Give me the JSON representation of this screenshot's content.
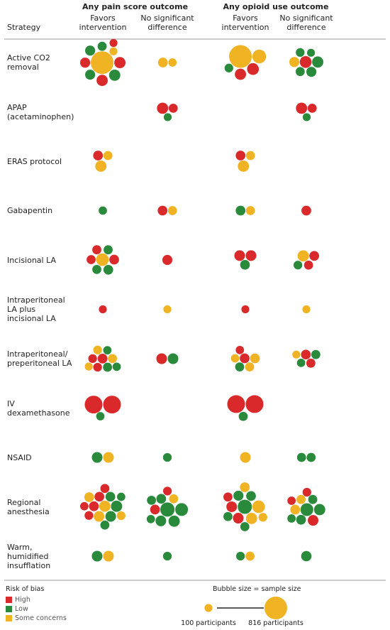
{
  "chart_data": {
    "type": "bubble-grid",
    "strategy_header": "Strategy",
    "outcomes": [
      {
        "title": "Any pain score outcome",
        "columns": [
          "Favors intervention",
          "No significant difference"
        ]
      },
      {
        "title": "Any opioid use outcome",
        "columns": [
          "Favors intervention",
          "No significant difference"
        ]
      }
    ],
    "bias_title": "Risk of bias",
    "bias_levels": [
      {
        "name": "High",
        "color": "#d9292b"
      },
      {
        "name": "Low",
        "color": "#2a8a3c"
      },
      {
        "name": "Some concerns",
        "color": "#f0b323"
      }
    ],
    "size_title": "Bubble size = sample size",
    "size_legend": [
      {
        "value": 100,
        "label": "100 participants"
      },
      {
        "value": 816,
        "label": "816 participants"
      }
    ],
    "rows": [
      {
        "strategy": "Active CO2 removal",
        "cells": [
          [
            {
              "bias": "Some concerns",
              "n": 816
            },
            {
              "bias": "High",
              "n": 200
            },
            {
              "bias": "Low",
              "n": 200
            },
            {
              "bias": "High",
              "n": 200
            },
            {
              "bias": "Low",
              "n": 160
            },
            {
              "bias": "High",
              "n": 160
            },
            {
              "bias": "Low",
              "n": 160
            },
            {
              "bias": "Low",
              "n": 130
            },
            {
              "bias": "Some concerns",
              "n": 100
            },
            {
              "bias": "High",
              "n": 100
            }
          ],
          [
            {
              "bias": "Some concerns",
              "n": 150
            },
            {
              "bias": "Some concerns",
              "n": 110
            }
          ],
          [
            {
              "bias": "Some concerns",
              "n": 816
            },
            {
              "bias": "Some concerns",
              "n": 300
            },
            {
              "bias": "High",
              "n": 220
            },
            {
              "bias": "High",
              "n": 200
            },
            {
              "bias": "Low",
              "n": 120
            }
          ],
          [
            {
              "bias": "High",
              "n": 220
            },
            {
              "bias": "Low",
              "n": 200
            },
            {
              "bias": "Low",
              "n": 160
            },
            {
              "bias": "Low",
              "n": 130
            },
            {
              "bias": "Some concerns",
              "n": 160
            },
            {
              "bias": "Low",
              "n": 120
            },
            {
              "bias": "Low",
              "n": 100
            }
          ]
        ]
      },
      {
        "strategy": "APAP (acetaminophen)",
        "cells": [
          [],
          [
            {
              "bias": "High",
              "n": 200
            },
            {
              "bias": "High",
              "n": 130
            },
            {
              "bias": "Low",
              "n": 100
            }
          ],
          [],
          [
            {
              "bias": "High",
              "n": 200
            },
            {
              "bias": "High",
              "n": 130
            },
            {
              "bias": "Low",
              "n": 100
            }
          ]
        ]
      },
      {
        "strategy": "ERAS protocol",
        "cells": [
          [
            {
              "bias": "High",
              "n": 150
            },
            {
              "bias": "Some concerns",
              "n": 130
            },
            {
              "bias": "Some concerns",
              "n": 200
            }
          ],
          [],
          [
            {
              "bias": "High",
              "n": 150
            },
            {
              "bias": "Some concerns",
              "n": 130
            },
            {
              "bias": "Some concerns",
              "n": 200
            }
          ],
          []
        ]
      },
      {
        "strategy": "Gabapentin",
        "cells": [
          [
            {
              "bias": "Low",
              "n": 110
            }
          ],
          [
            {
              "bias": "High",
              "n": 150
            },
            {
              "bias": "Some concerns",
              "n": 130
            }
          ],
          [
            {
              "bias": "Low",
              "n": 150
            },
            {
              "bias": "Some concerns",
              "n": 130
            }
          ],
          [
            {
              "bias": "High",
              "n": 150
            }
          ]
        ]
      },
      {
        "strategy": "Incisional LA",
        "cells": [
          [
            {
              "bias": "Some concerns",
              "n": 250
            },
            {
              "bias": "High",
              "n": 150
            },
            {
              "bias": "Low",
              "n": 150
            },
            {
              "bias": "Low",
              "n": 130
            },
            {
              "bias": "High",
              "n": 130
            },
            {
              "bias": "High",
              "n": 130
            },
            {
              "bias": "Low",
              "n": 130
            }
          ],
          [
            {
              "bias": "High",
              "n": 160
            }
          ],
          [
            {
              "bias": "High",
              "n": 180
            },
            {
              "bias": "High",
              "n": 180
            },
            {
              "bias": "Low",
              "n": 150
            }
          ],
          [
            {
              "bias": "Some concerns",
              "n": 200
            },
            {
              "bias": "High",
              "n": 150
            },
            {
              "bias": "High",
              "n": 130
            },
            {
              "bias": "Low",
              "n": 120
            }
          ]
        ]
      },
      {
        "strategy": "Intraperitoneal LA plus incisional LA",
        "cells": [
          [
            {
              "bias": "High",
              "n": 100
            }
          ],
          [
            {
              "bias": "Some concerns",
              "n": 100
            }
          ],
          [
            {
              "bias": "High",
              "n": 100
            }
          ],
          [
            {
              "bias": "Some concerns",
              "n": 100
            }
          ]
        ]
      },
      {
        "strategy": "Intraperitoneal/ preperitoneal LA",
        "cells": [
          [
            {
              "bias": "High",
              "n": 150
            },
            {
              "bias": "Some concerns",
              "n": 130
            },
            {
              "bias": "Low",
              "n": 130
            },
            {
              "bias": "High",
              "n": 120
            },
            {
              "bias": "High",
              "n": 120
            },
            {
              "bias": "Some concerns",
              "n": 120
            },
            {
              "bias": "Low",
              "n": 110
            },
            {
              "bias": "Some concerns",
              "n": 100
            },
            {
              "bias": "Low",
              "n": 110
            }
          ],
          [
            {
              "bias": "High",
              "n": 180
            },
            {
              "bias": "Low",
              "n": 180
            }
          ],
          [
            {
              "bias": "High",
              "n": 150
            },
            {
              "bias": "Some concerns",
              "n": 150
            },
            {
              "bias": "Some concerns",
              "n": 130
            },
            {
              "bias": "Low",
              "n": 130
            },
            {
              "bias": "Some concerns",
              "n": 110
            },
            {
              "bias": "High",
              "n": 110
            }
          ],
          [
            {
              "bias": "High",
              "n": 150
            },
            {
              "bias": "Low",
              "n": 130
            },
            {
              "bias": "High",
              "n": 130
            },
            {
              "bias": "Low",
              "n": 110
            },
            {
              "bias": "Some concerns",
              "n": 100
            }
          ]
        ]
      },
      {
        "strategy": "IV dexamethasone",
        "cells": [
          [
            {
              "bias": "High",
              "n": 500
            },
            {
              "bias": "High",
              "n": 500
            },
            {
              "bias": "Low",
              "n": 110
            }
          ],
          [],
          [
            {
              "bias": "High",
              "n": 500
            },
            {
              "bias": "High",
              "n": 500
            },
            {
              "bias": "Low",
              "n": 130
            }
          ],
          []
        ]
      },
      {
        "strategy": "NSAID",
        "cells": [
          [
            {
              "bias": "Low",
              "n": 180
            },
            {
              "bias": "Some concerns",
              "n": 180
            }
          ],
          [
            {
              "bias": "Low",
              "n": 120
            }
          ],
          [
            {
              "bias": "Some concerns",
              "n": 180
            }
          ],
          [
            {
              "bias": "Low",
              "n": 130
            },
            {
              "bias": "Low",
              "n": 130
            }
          ]
        ]
      },
      {
        "strategy": "Regional anesthesia",
        "cells": [
          [
            {
              "bias": "Some concerns",
              "n": 200
            },
            {
              "bias": "Low",
              "n": 200
            },
            {
              "bias": "Low",
              "n": 180
            },
            {
              "bias": "Some concerns",
              "n": 180
            },
            {
              "bias": "High",
              "n": 150
            },
            {
              "bias": "High",
              "n": 150
            },
            {
              "bias": "Low",
              "n": 150
            },
            {
              "bias": "Some concerns",
              "n": 150
            },
            {
              "bias": "High",
              "n": 130
            },
            {
              "bias": "Low",
              "n": 130
            },
            {
              "bias": "High",
              "n": 120
            },
            {
              "bias": "Some concerns",
              "n": 120
            },
            {
              "bias": "Low",
              "n": 110
            },
            {
              "bias": "High",
              "n": 110
            }
          ],
          [
            {
              "bias": "Low",
              "n": 320
            },
            {
              "bias": "Low",
              "n": 260
            },
            {
              "bias": "Low",
              "n": 200
            },
            {
              "bias": "Low",
              "n": 180
            },
            {
              "bias": "High",
              "n": 150
            },
            {
              "bias": "Low",
              "n": 150
            },
            {
              "bias": "Some concerns",
              "n": 130
            },
            {
              "bias": "Low",
              "n": 130
            },
            {
              "bias": "High",
              "n": 120
            },
            {
              "bias": "Low",
              "n": 110
            }
          ],
          [
            {
              "bias": "Low",
              "n": 320
            },
            {
              "bias": "Some concerns",
              "n": 250
            },
            {
              "bias": "Some concerns",
              "n": 200
            },
            {
              "bias": "High",
              "n": 180
            },
            {
              "bias": "High",
              "n": 180
            },
            {
              "bias": "Low",
              "n": 160
            },
            {
              "bias": "Low",
              "n": 150
            },
            {
              "bias": "Some concerns",
              "n": 150
            },
            {
              "bias": "Low",
              "n": 130
            },
            {
              "bias": "High",
              "n": 130
            },
            {
              "bias": "Low",
              "n": 130
            },
            {
              "bias": "Some concerns",
              "n": 120
            }
          ],
          [
            {
              "bias": "Low",
              "n": 260
            },
            {
              "bias": "Low",
              "n": 200
            },
            {
              "bias": "High",
              "n": 180
            },
            {
              "bias": "Low",
              "n": 150
            },
            {
              "bias": "Some concerns",
              "n": 150
            },
            {
              "bias": "Some concerns",
              "n": 130
            },
            {
              "bias": "Low",
              "n": 130
            },
            {
              "bias": "High",
              "n": 120
            },
            {
              "bias": "Low",
              "n": 110
            },
            {
              "bias": "High",
              "n": 110
            }
          ]
        ]
      },
      {
        "strategy": "Warm, humidified insufflation",
        "cells": [
          [
            {
              "bias": "Low",
              "n": 180
            },
            {
              "bias": "Some concerns",
              "n": 180
            }
          ],
          [
            {
              "bias": "Low",
              "n": 120
            }
          ],
          [
            {
              "bias": "Low",
              "n": 120
            },
            {
              "bias": "Some concerns",
              "n": 130
            }
          ],
          [
            {
              "bias": "Low",
              "n": 170
            }
          ]
        ]
      }
    ]
  }
}
